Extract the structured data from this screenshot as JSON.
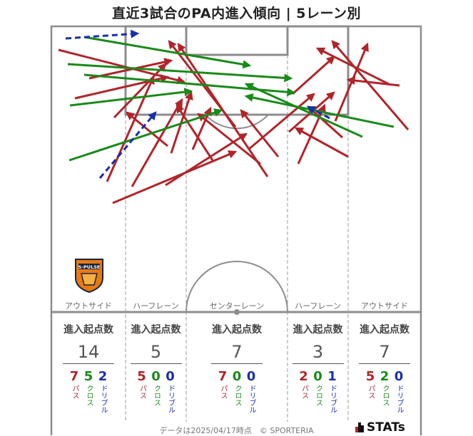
{
  "title": "直近3試合のPA内進入傾向 | 5レーン別",
  "colors": {
    "pass": "#b0252a",
    "cross": "#1a8a1a",
    "dribble": "#1a2faa"
  },
  "lanes": [
    {
      "name": "アウトサイド",
      "header": "進入起点数",
      "total": "14",
      "breakdown": [
        {
          "value": "7",
          "label": "パス",
          "kind": "pass"
        },
        {
          "value": "5",
          "label": "クロス",
          "kind": "cross"
        },
        {
          "value": "2",
          "label": "ドリブル",
          "kind": "dribble"
        }
      ]
    },
    {
      "name": "ハーフレーン",
      "header": "進入起点数",
      "total": "5",
      "breakdown": [
        {
          "value": "5",
          "label": "パス",
          "kind": "pass"
        },
        {
          "value": "0",
          "label": "クロス",
          "kind": "cross"
        },
        {
          "value": "0",
          "label": "ドリブル",
          "kind": "dribble"
        }
      ]
    },
    {
      "name": "センターレーン",
      "header": "進入起点数",
      "total": "7",
      "breakdown": [
        {
          "value": "7",
          "label": "パス",
          "kind": "pass"
        },
        {
          "value": "0",
          "label": "クロス",
          "kind": "cross"
        },
        {
          "value": "0",
          "label": "ドリブル",
          "kind": "dribble"
        }
      ]
    },
    {
      "name": "ハーフレーン",
      "header": "進入起点数",
      "total": "3",
      "breakdown": [
        {
          "value": "2",
          "label": "パス",
          "kind": "pass"
        },
        {
          "value": "0",
          "label": "クロス",
          "kind": "cross"
        },
        {
          "value": "1",
          "label": "ドリブル",
          "kind": "dribble"
        }
      ]
    },
    {
      "name": "アウトサイド",
      "header": "進入起点数",
      "total": "7",
      "breakdown": [
        {
          "value": "5",
          "label": "パス",
          "kind": "pass"
        },
        {
          "value": "2",
          "label": "クロス",
          "kind": "cross"
        },
        {
          "value": "0",
          "label": "ドリブル",
          "kind": "dribble"
        }
      ]
    }
  ],
  "team_logo": {
    "text": "S-PULSE",
    "icon": "team-crest"
  },
  "footer": "データは2025/04/17時点　© SPORTERIA",
  "brand": "STATs"
}
